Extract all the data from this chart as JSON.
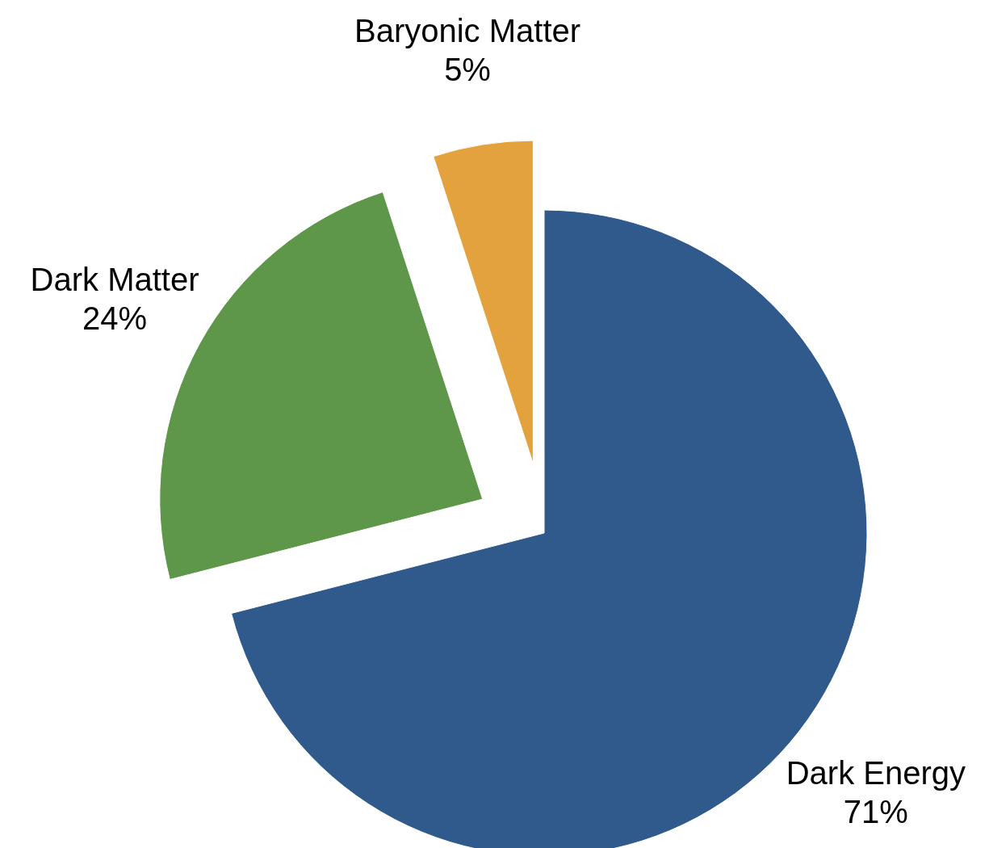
{
  "chart_data": {
    "type": "pie",
    "categories": [
      "Dark Energy",
      "Dark Matter",
      "Baryonic Matter"
    ],
    "values": [
      71,
      24,
      5
    ],
    "colors": [
      "#2f5a8b",
      "#5e9749",
      "#e4a23e"
    ],
    "value_labels": [
      "71%",
      "24%",
      "5%"
    ]
  }
}
